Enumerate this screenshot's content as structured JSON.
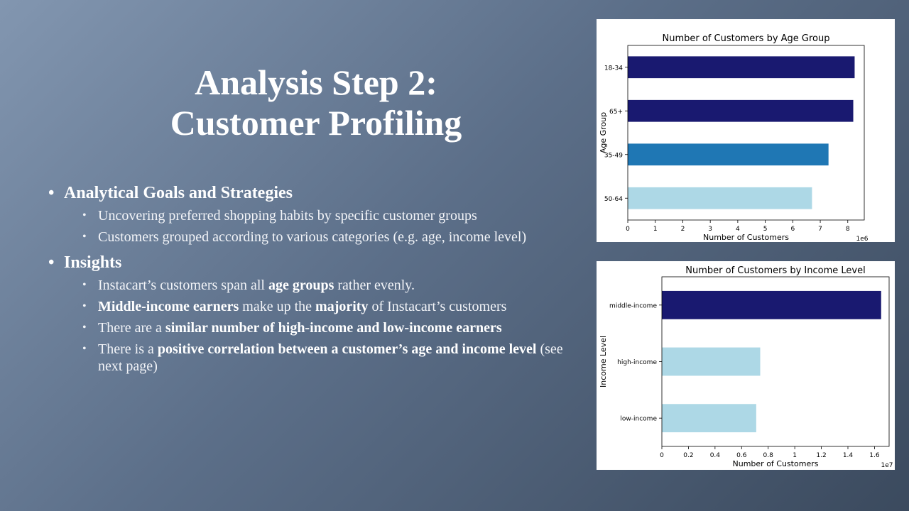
{
  "slide": {
    "title_line1": "Analysis Step 2:",
    "title_line2": "Customer Profiling",
    "sections": [
      {
        "heading": "Analytical Goals and Strategies",
        "bullets": [
          [
            {
              "t": "Uncovering preferred shopping habits by specific customer groups",
              "b": false
            }
          ],
          [
            {
              "t": "Customers grouped according to various categories (e.g. age, income level)",
              "b": false
            }
          ]
        ]
      },
      {
        "heading": "Insights",
        "bullets": [
          [
            {
              "t": "Instacart’s customers span all ",
              "b": false
            },
            {
              "t": "age groups",
              "b": true
            },
            {
              "t": " rather evenly.",
              "b": false
            }
          ],
          [
            {
              "t": "Middle-income earners",
              "b": true
            },
            {
              "t": " make up the ",
              "b": false
            },
            {
              "t": "majority",
              "b": true
            },
            {
              "t": " of Instacart’s customers",
              "b": false
            }
          ],
          [
            {
              "t": "There are a ",
              "b": false
            },
            {
              "t": "similar number of high-income and low-income earners",
              "b": true
            }
          ],
          [
            {
              "t": "There is a ",
              "b": false
            },
            {
              "t": "positive correlation between a customer’s age and income level",
              "b": true
            },
            {
              "t": " (see next page)",
              "b": false
            }
          ]
        ]
      }
    ]
  },
  "chart_data": [
    {
      "type": "bar",
      "orientation": "horizontal",
      "title": "Number of Customers by Age Group",
      "xlabel": "Number of Customers",
      "ylabel": "Age Group",
      "x_scale_note": "1e6",
      "categories": [
        "18-34",
        "65+",
        "35-49",
        "50-64"
      ],
      "values": [
        8.25,
        8.2,
        7.3,
        6.7
      ],
      "colors": [
        "#191970",
        "#191970",
        "#1f77b4",
        "#add8e6"
      ],
      "xlim": [
        0,
        8.6
      ],
      "xticks": [
        0,
        1,
        2,
        3,
        4,
        5,
        6,
        7,
        8
      ],
      "grid": false,
      "legend": "none"
    },
    {
      "type": "bar",
      "orientation": "horizontal",
      "title": "Number of Customers by Income Level",
      "xlabel": "Number of Customers",
      "ylabel": "Income Level",
      "x_scale_note": "1e7",
      "categories": [
        "middle-income",
        "high-income",
        "low-income"
      ],
      "values": [
        1.65,
        0.74,
        0.71
      ],
      "colors": [
        "#191970",
        "#add8e6",
        "#add8e6"
      ],
      "xlim": [
        0,
        1.71
      ],
      "xticks": [
        0.0,
        0.2,
        0.4,
        0.6,
        0.8,
        1.0,
        1.2,
        1.4,
        1.6
      ],
      "grid": false,
      "legend": "none"
    }
  ]
}
